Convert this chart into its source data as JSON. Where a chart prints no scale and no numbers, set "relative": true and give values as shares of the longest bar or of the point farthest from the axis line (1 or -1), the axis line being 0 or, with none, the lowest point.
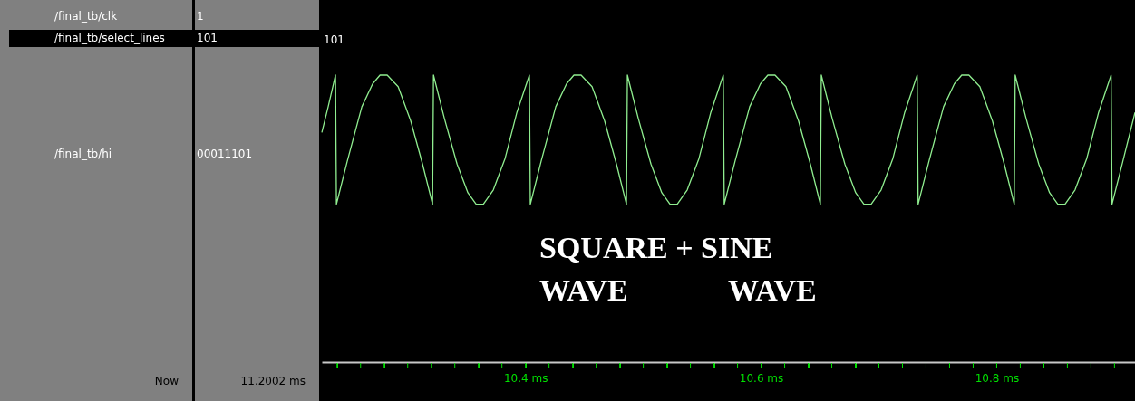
{
  "chart_data": {
    "type": "line",
    "relative": true,
    "xlim": [
      10.2271,
      10.9174
    ],
    "xticks": [
      {
        "value": 10.24,
        "label": null
      },
      {
        "value": 10.26,
        "label": null
      },
      {
        "value": 10.28,
        "label": null
      },
      {
        "value": 10.3,
        "label": null
      },
      {
        "value": 10.32,
        "label": null
      },
      {
        "value": 10.34,
        "label": null
      },
      {
        "value": 10.36,
        "label": null
      },
      {
        "value": 10.38,
        "label": null
      },
      {
        "value": 10.4,
        "label": "10.4 ms"
      },
      {
        "value": 10.42,
        "label": null
      },
      {
        "value": 10.44,
        "label": null
      },
      {
        "value": 10.46,
        "label": null
      },
      {
        "value": 10.48,
        "label": null
      },
      {
        "value": 10.5,
        "label": null
      },
      {
        "value": 10.52,
        "label": null
      },
      {
        "value": 10.54,
        "label": null
      },
      {
        "value": 10.56,
        "label": null
      },
      {
        "value": 10.58,
        "label": null
      },
      {
        "value": 10.6,
        "label": "10.6 ms"
      },
      {
        "value": 10.62,
        "label": null
      },
      {
        "value": 10.64,
        "label": null
      },
      {
        "value": 10.66,
        "label": null
      },
      {
        "value": 10.68,
        "label": null
      },
      {
        "value": 10.7,
        "label": null
      },
      {
        "value": 10.72,
        "label": null
      },
      {
        "value": 10.74,
        "label": null
      },
      {
        "value": 10.76,
        "label": null
      },
      {
        "value": 10.78,
        "label": null
      },
      {
        "value": 10.8,
        "label": "10.8 ms"
      },
      {
        "value": 10.82,
        "label": null
      },
      {
        "value": 10.84,
        "label": null
      },
      {
        "value": 10.86,
        "label": null
      },
      {
        "value": 10.88,
        "label": null
      },
      {
        "value": 10.9,
        "label": null
      }
    ],
    "series": [
      {
        "name": "/final_tb/hi",
        "color": "#90ee90",
        "x": [
          10.2271,
          10.2325,
          10.2387,
          10.2395,
          10.2487,
          10.2611,
          10.2703,
          10.2765,
          10.2826,
          10.2919,
          10.3026,
          10.3126,
          10.3211,
          10.3219,
          10.3311,
          10.3419,
          10.3511,
          10.3581,
          10.3642,
          10.3727,
          10.3827,
          10.3927,
          10.4033,
          10.4041,
          10.4133,
          10.4257,
          10.4349,
          10.4411,
          10.4472,
          10.4565,
          10.4672,
          10.4772,
          10.4857,
          10.4865,
          10.4957,
          10.5065,
          10.5157,
          10.5227,
          10.5288,
          10.5373,
          10.5473,
          10.5573,
          10.5679,
          10.5687,
          10.5779,
          10.5903,
          10.5995,
          10.6057,
          10.6118,
          10.6211,
          10.6318,
          10.6418,
          10.6503,
          10.6511,
          10.6603,
          10.6711,
          10.6803,
          10.6873,
          10.6934,
          10.7019,
          10.7119,
          10.7219,
          10.7325,
          10.7333,
          10.7425,
          10.7549,
          10.7641,
          10.7703,
          10.7764,
          10.7857,
          10.7964,
          10.8064,
          10.8149,
          10.8157,
          10.8249,
          10.8357,
          10.8449,
          10.8519,
          10.858,
          10.8665,
          10.8765,
          10.8865,
          10.8971,
          10.8979,
          10.9071,
          10.9174
        ],
        "values": [
          0.8,
          0.89,
          1,
          0.55,
          0.7,
          0.89,
          0.97,
          1,
          1,
          0.96,
          0.84,
          0.69,
          0.55,
          1,
          0.85,
          0.69,
          0.59,
          0.55,
          0.55,
          0.6,
          0.71,
          0.87,
          1,
          0.55,
          0.7,
          0.89,
          0.97,
          1,
          1,
          0.96,
          0.84,
          0.69,
          0.55,
          1,
          0.85,
          0.69,
          0.59,
          0.55,
          0.55,
          0.6,
          0.71,
          0.87,
          1,
          0.55,
          0.7,
          0.89,
          0.97,
          1,
          1,
          0.96,
          0.84,
          0.69,
          0.55,
          1,
          0.85,
          0.69,
          0.59,
          0.55,
          0.55,
          0.6,
          0.71,
          0.87,
          1,
          0.55,
          0.7,
          0.89,
          0.97,
          1,
          1,
          0.96,
          0.84,
          0.69,
          0.55,
          1,
          0.85,
          0.69,
          0.59,
          0.55,
          0.55,
          0.6,
          0.71,
          0.87,
          1,
          0.55,
          0.7,
          0.87
        ]
      }
    ],
    "annotations": [
      "/final_tb/clk",
      "1",
      "/final_tb/select_lines",
      "101",
      "101",
      "00011101",
      "Now",
      "11.2002 ms",
      "SQUARE + SINE",
      "WAVE WAVE"
    ]
  }
}
